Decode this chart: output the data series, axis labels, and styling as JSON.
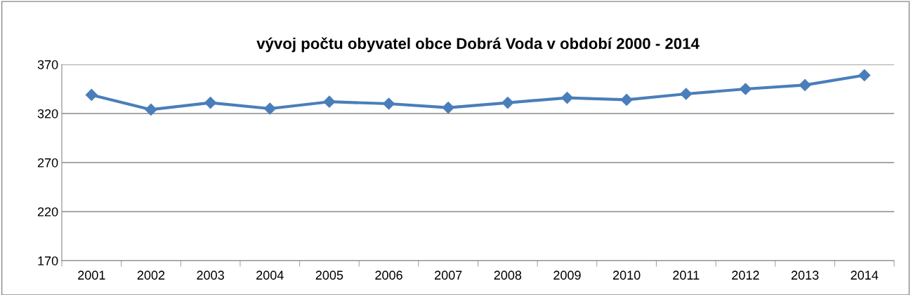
{
  "chart_data": {
    "type": "line",
    "title": "vývoj počtu obyvatel obce Dobrá Voda v období 2000 - 2014",
    "categories": [
      "2001",
      "2002",
      "2003",
      "2004",
      "2005",
      "2006",
      "2007",
      "2008",
      "2009",
      "2010",
      "2011",
      "2012",
      "2013",
      "2014"
    ],
    "series": [
      {
        "color": "#4a7ebb",
        "values": [
          339,
          324,
          331,
          325,
          332,
          330,
          326,
          331,
          336,
          334,
          340,
          345,
          349,
          359
        ]
      }
    ],
    "ylim": [
      170,
      370
    ],
    "yticks": [
      170,
      220,
      270,
      320,
      370
    ],
    "grid": "y",
    "legend": false,
    "marker": "diamond",
    "line_style": "solid"
  }
}
